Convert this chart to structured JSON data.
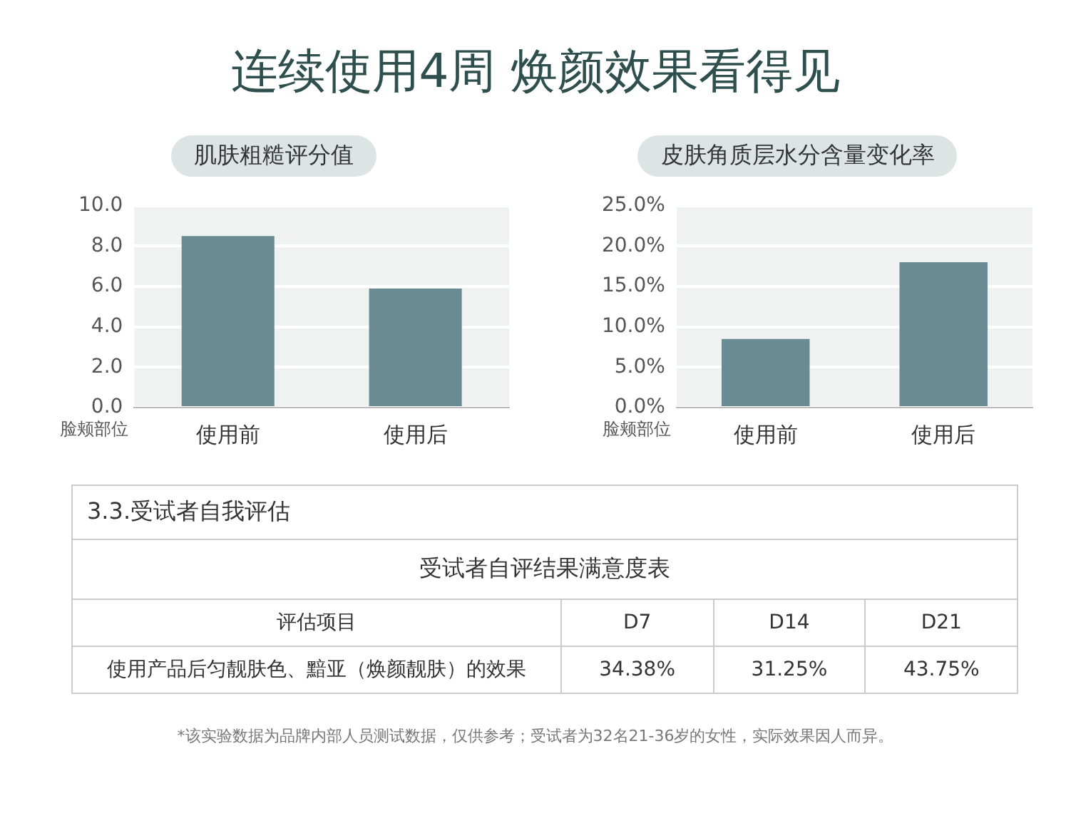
{
  "chart_data": [
    {
      "type": "bar",
      "title": "连续使用4周 焕颜效果看得见",
      "subtitle": "肌肤粗糙评分值",
      "xlabel": "脸颊部位",
      "categories": [
        "使用前",
        "使用后"
      ],
      "values": [
        8.5,
        5.9
      ],
      "color": "#6b8b94",
      "ylim": [
        0,
        10
      ],
      "yticks": [
        {
          "value": 0,
          "label": "0.0"
        },
        {
          "value": 2,
          "label": "2.0"
        },
        {
          "value": 4,
          "label": "4.0"
        },
        {
          "value": 6,
          "label": "6.0"
        },
        {
          "value": 8,
          "label": "8.0"
        },
        {
          "value": 10,
          "label": "10.0"
        }
      ],
      "grid": "y"
    },
    {
      "type": "bar",
      "subtitle": "皮肤角质层水分含量变化率",
      "xlabel": "脸颊部位",
      "categories": [
        "使用前",
        "使用后"
      ],
      "values": [
        8.5,
        18.0
      ],
      "color": "#6b8b94",
      "ylim": [
        0,
        25
      ],
      "yticks": [
        {
          "value": 0,
          "label": "0.0%"
        },
        {
          "value": 5,
          "label": "5.0%"
        },
        {
          "value": 10,
          "label": "10.0%"
        },
        {
          "value": 15,
          "label": "15.0%"
        },
        {
          "value": 20,
          "label": "20.0%"
        },
        {
          "value": 25,
          "label": "25.0%"
        }
      ],
      "grid": "y"
    },
    {
      "type": "other",
      "title": "3.3.受试者自我评估",
      "subtitle": "受试者自评结果满意度表",
      "annotations": [
        "评估项目",
        "D7",
        "D14",
        "D21",
        "使用产品后匀靓肤色、黯亚（焕颜靓肤）的效果",
        "34.38%",
        "31.25%",
        "43.75%",
        "*该实验数据为品牌内部人员测试数据，仅供参考；受试者为32名21-36岁的女性，实际效果因人而异。"
      ]
    }
  ]
}
